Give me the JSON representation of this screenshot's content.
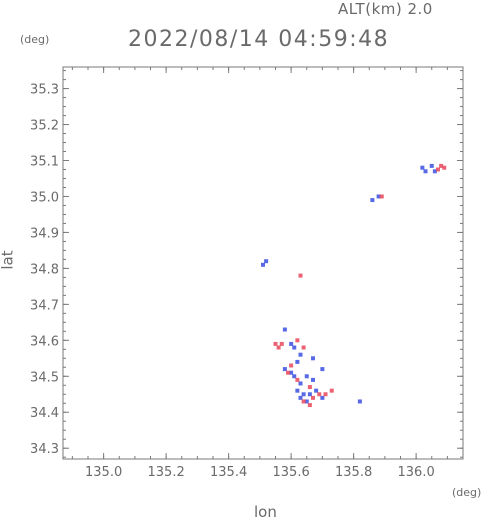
{
  "header": {
    "altitude": "ALT(km) 2.0",
    "timestamp": "2022/08/14 04:59:48"
  },
  "axes": {
    "xlabel": "lon",
    "ylabel": "lat",
    "xunit": "(deg)",
    "yunit": "(deg)"
  },
  "chart_data": {
    "type": "scatter",
    "xlim": [
      134.87,
      136.15
    ],
    "ylim": [
      34.27,
      35.36
    ],
    "xticks": [
      135.0,
      135.2,
      135.4,
      135.6,
      135.8,
      136.0
    ],
    "xtick_labels": [
      "135.0",
      "135.2",
      "135.4",
      "135.6",
      "135.8",
      "136.0"
    ],
    "yticks": [
      34.3,
      34.4,
      34.5,
      34.6,
      34.7,
      34.8,
      34.9,
      35.0,
      35.1,
      35.2,
      35.3
    ],
    "ytick_labels": [
      "34.3",
      "34.4",
      "34.5",
      "34.6",
      "34.7",
      "34.8",
      "34.9",
      "35.0",
      "35.1",
      "35.2",
      "35.3"
    ],
    "grid": false,
    "colors": {
      "positive": "#e8485a",
      "negative": "#3a4fe0",
      "axis": "#7a7a7a"
    },
    "series": [
      {
        "color": "#3a4fe0",
        "points": [
          [
            136.02,
            35.08
          ],
          [
            136.03,
            35.07
          ],
          [
            136.05,
            35.085
          ],
          [
            136.06,
            35.07
          ],
          [
            135.86,
            34.99
          ],
          [
            135.88,
            35.0
          ],
          [
            135.51,
            34.81
          ],
          [
            135.52,
            34.82
          ],
          [
            135.58,
            34.63
          ],
          [
            135.6,
            34.59
          ],
          [
            135.61,
            34.58
          ],
          [
            135.63,
            34.56
          ],
          [
            135.62,
            34.54
          ],
          [
            135.6,
            34.51
          ],
          [
            135.61,
            34.5
          ],
          [
            135.63,
            34.48
          ],
          [
            135.65,
            34.5
          ],
          [
            135.67,
            34.49
          ],
          [
            135.62,
            34.46
          ],
          [
            135.64,
            34.45
          ],
          [
            135.63,
            34.44
          ],
          [
            135.66,
            34.45
          ],
          [
            135.68,
            34.46
          ],
          [
            135.65,
            34.43
          ],
          [
            135.7,
            34.44
          ],
          [
            135.82,
            34.43
          ],
          [
            135.58,
            34.52
          ],
          [
            135.7,
            34.52
          ],
          [
            135.67,
            34.55
          ]
        ]
      },
      {
        "color": "#e8485a",
        "points": [
          [
            136.08,
            35.085
          ],
          [
            136.09,
            35.08
          ],
          [
            136.07,
            35.075
          ],
          [
            135.89,
            35.0
          ],
          [
            135.63,
            34.78
          ],
          [
            135.55,
            34.59
          ],
          [
            135.56,
            34.58
          ],
          [
            135.57,
            34.59
          ],
          [
            135.62,
            34.6
          ],
          [
            135.64,
            34.58
          ],
          [
            135.6,
            34.53
          ],
          [
            135.59,
            34.51
          ],
          [
            135.62,
            34.49
          ],
          [
            135.66,
            34.47
          ],
          [
            135.67,
            34.44
          ],
          [
            135.69,
            34.45
          ],
          [
            135.71,
            34.45
          ],
          [
            135.73,
            34.46
          ],
          [
            135.66,
            34.42
          ],
          [
            135.64,
            34.43
          ]
        ]
      }
    ]
  }
}
